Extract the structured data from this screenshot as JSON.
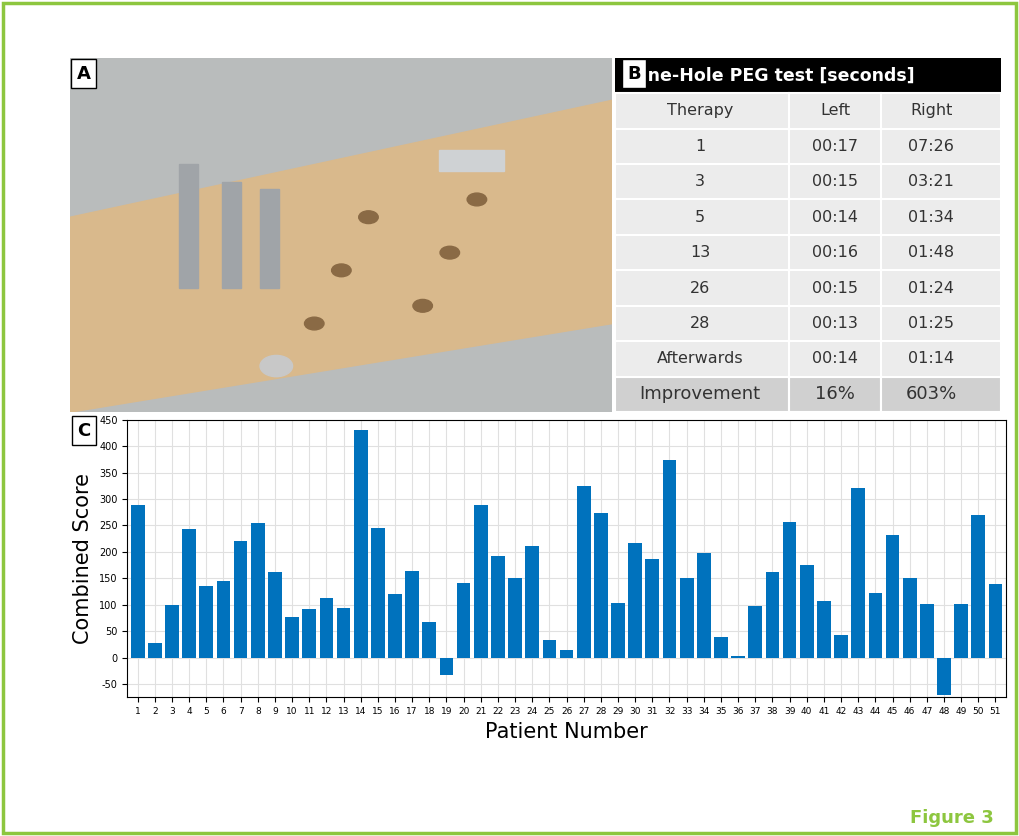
{
  "panel_labels": [
    "A",
    "B",
    "C"
  ],
  "figure_label": "Figure 3",
  "table": {
    "title": "Nine-Hole PEG test [seconds]",
    "header": [
      "Therapy",
      "Left",
      "Right"
    ],
    "rows": [
      [
        "1",
        "00:17",
        "07:26"
      ],
      [
        "3",
        "00:15",
        "03:21"
      ],
      [
        "5",
        "00:14",
        "01:34"
      ],
      [
        "13",
        "00:16",
        "01:48"
      ],
      [
        "26",
        "00:15",
        "01:24"
      ],
      [
        "28",
        "00:13",
        "01:25"
      ],
      [
        "Afterwards",
        "00:14",
        "01:14"
      ],
      [
        "Improvement",
        "16%",
        "603%"
      ]
    ]
  },
  "chart_data": {
    "type": "bar",
    "x_label": "Patient Number",
    "y_label": "Combined Score",
    "categories": [
      "1",
      "2",
      "3",
      "4",
      "5",
      "6",
      "7",
      "8",
      "9",
      "10",
      "11",
      "12",
      "13",
      "14",
      "15",
      "16",
      "17",
      "18",
      "19",
      "20",
      "21",
      "22",
      "23",
      "24",
      "25",
      "26",
      "27",
      "28",
      "29",
      "30",
      "31",
      "32",
      "33",
      "34",
      "35",
      "36",
      "37",
      "38",
      "39",
      "40",
      "41",
      "42",
      "43",
      "44",
      "45",
      "46",
      "47",
      "48",
      "49",
      "50",
      "51"
    ],
    "values": [
      288,
      28,
      100,
      243,
      135,
      145,
      220,
      255,
      162,
      76,
      92,
      113,
      93,
      430,
      246,
      121,
      164,
      68,
      -33,
      142,
      289,
      193,
      150,
      211,
      34,
      15,
      324,
      274,
      104,
      217,
      187,
      373,
      150,
      197,
      38,
      3,
      97,
      161,
      257,
      175,
      107,
      43,
      320,
      123,
      231,
      150,
      101,
      -70,
      102,
      269,
      140
    ],
    "color": "#0072BD",
    "ylim": [
      -75,
      450
    ],
    "yticks": [
      -50,
      0,
      50,
      100,
      150,
      200,
      250,
      300,
      350,
      400,
      450
    ],
    "grid": true
  }
}
